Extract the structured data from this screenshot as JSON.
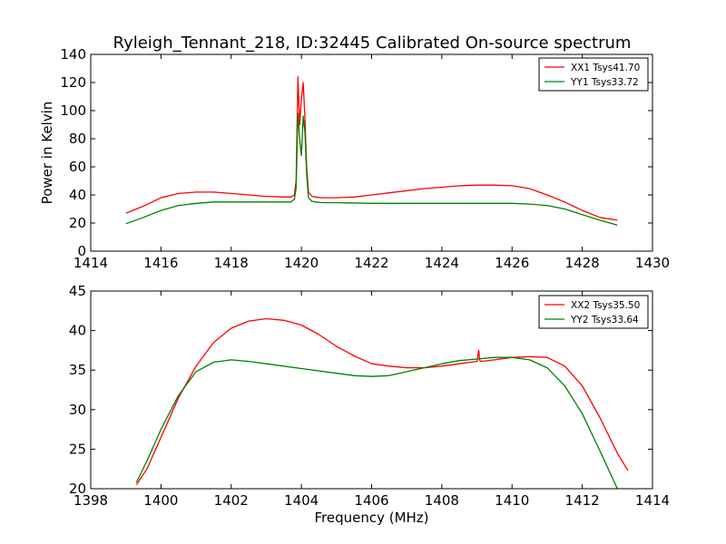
{
  "figure": {
    "title": "Ryleigh_Tennant_218, ID:32445 Calibrated On-source spectrum"
  },
  "chart_data": [
    {
      "type": "line",
      "title": "Ryleigh_Tennant_218, ID:32445 Calibrated On-source spectrum",
      "xlabel": "",
      "ylabel": "Power in Kelvin",
      "xlim": [
        1414,
        1430
      ],
      "ylim": [
        0,
        140
      ],
      "xticks": [
        1414,
        1416,
        1418,
        1420,
        1422,
        1424,
        1426,
        1428,
        1430
      ],
      "yticks": [
        0,
        20,
        40,
        60,
        80,
        100,
        120,
        140
      ],
      "grid": false,
      "legend_position": "top-right",
      "series": [
        {
          "name": "XX1 Tsys41.70",
          "color": "#ff0000",
          "x": [
            1415.0,
            1415.5,
            1416.0,
            1416.5,
            1417.0,
            1417.5,
            1418.0,
            1418.5,
            1419.0,
            1419.5,
            1419.7,
            1419.8,
            1419.85,
            1419.9,
            1419.95,
            1420.0,
            1420.05,
            1420.1,
            1420.15,
            1420.2,
            1420.3,
            1420.4,
            1420.6,
            1421.0,
            1421.5,
            1422.0,
            1422.5,
            1423.0,
            1423.5,
            1424.0,
            1424.5,
            1425.0,
            1425.5,
            1426.0,
            1426.5,
            1427.0,
            1427.5,
            1428.0,
            1428.5,
            1429.0
          ],
          "y": [
            27,
            32,
            38,
            41,
            42,
            42,
            41,
            40,
            39,
            38.5,
            38.5,
            40,
            50,
            124,
            90,
            108,
            120,
            95,
            60,
            42,
            39,
            38.5,
            38,
            38,
            38.5,
            40,
            41.5,
            43,
            44.5,
            45.5,
            46.5,
            47,
            47,
            46.5,
            44.5,
            40,
            35,
            29,
            24,
            22
          ]
        },
        {
          "name": "YY1 Tsys33.72",
          "color": "#008000",
          "x": [
            1415.0,
            1415.5,
            1416.0,
            1416.5,
            1417.0,
            1417.5,
            1418.0,
            1418.5,
            1419.0,
            1419.5,
            1419.7,
            1419.8,
            1419.85,
            1419.9,
            1419.95,
            1420.0,
            1420.05,
            1420.1,
            1420.15,
            1420.2,
            1420.3,
            1420.4,
            1420.6,
            1421.0,
            1422.0,
            1423.0,
            1424.0,
            1425.0,
            1426.0,
            1426.5,
            1427.0,
            1427.5,
            1428.0,
            1428.5,
            1429.0
          ],
          "y": [
            19.5,
            24,
            29,
            32.5,
            34,
            35,
            35,
            35,
            35,
            35,
            35,
            37,
            45,
            98,
            80,
            68,
            96,
            85,
            55,
            38,
            35.5,
            35,
            34.5,
            34.5,
            34,
            34,
            34,
            34,
            34,
            33.5,
            32.5,
            30,
            26,
            22,
            18.5
          ]
        }
      ]
    },
    {
      "type": "line",
      "title": "",
      "xlabel": "Frequency (MHz)",
      "ylabel": "",
      "xlim": [
        1398,
        1414
      ],
      "ylim": [
        20,
        45
      ],
      "xticks": [
        1398,
        1400,
        1402,
        1404,
        1406,
        1408,
        1410,
        1412,
        1414
      ],
      "yticks": [
        20,
        25,
        30,
        35,
        40,
        45
      ],
      "grid": false,
      "legend_position": "top-right",
      "series": [
        {
          "name": "XX2 Tsys35.50",
          "color": "#ff0000",
          "x": [
            1399.3,
            1399.6,
            1400.0,
            1400.5,
            1401.0,
            1401.5,
            1402.0,
            1402.5,
            1403.0,
            1403.5,
            1404.0,
            1404.5,
            1405.0,
            1405.5,
            1406.0,
            1406.5,
            1407.0,
            1407.5,
            1408.0,
            1408.5,
            1409.0,
            1409.05,
            1409.08,
            1409.12,
            1409.5,
            1410.0,
            1410.5,
            1411.0,
            1411.5,
            1412.0,
            1412.5,
            1413.0,
            1413.3
          ],
          "y": [
            20.5,
            22.5,
            26.5,
            31.5,
            35.5,
            38.5,
            40.3,
            41.2,
            41.5,
            41.3,
            40.7,
            39.5,
            38,
            36.8,
            35.8,
            35.5,
            35.3,
            35.3,
            35.5,
            35.8,
            36.1,
            37.5,
            36.2,
            36.1,
            36.3,
            36.6,
            36.7,
            36.6,
            35.5,
            33,
            29,
            24.5,
            22.3
          ]
        },
        {
          "name": "YY2 Tsys33.64",
          "color": "#008000",
          "x": [
            1399.3,
            1399.6,
            1400.0,
            1400.5,
            1401.0,
            1401.5,
            1402.0,
            1402.5,
            1403.0,
            1403.5,
            1404.0,
            1404.5,
            1405.0,
            1405.5,
            1406.0,
            1406.5,
            1407.0,
            1407.5,
            1408.0,
            1408.5,
            1409.0,
            1409.5,
            1410.0,
            1410.5,
            1411.0,
            1411.5,
            1412.0,
            1412.5,
            1413.0
          ],
          "y": [
            20.8,
            23.5,
            27.5,
            31.8,
            34.8,
            36,
            36.3,
            36.1,
            35.8,
            35.5,
            35.2,
            34.9,
            34.6,
            34.3,
            34.2,
            34.3,
            34.8,
            35.3,
            35.8,
            36.2,
            36.4,
            36.6,
            36.6,
            36.3,
            35.3,
            33,
            29.5,
            24.8,
            20
          ]
        }
      ]
    }
  ]
}
